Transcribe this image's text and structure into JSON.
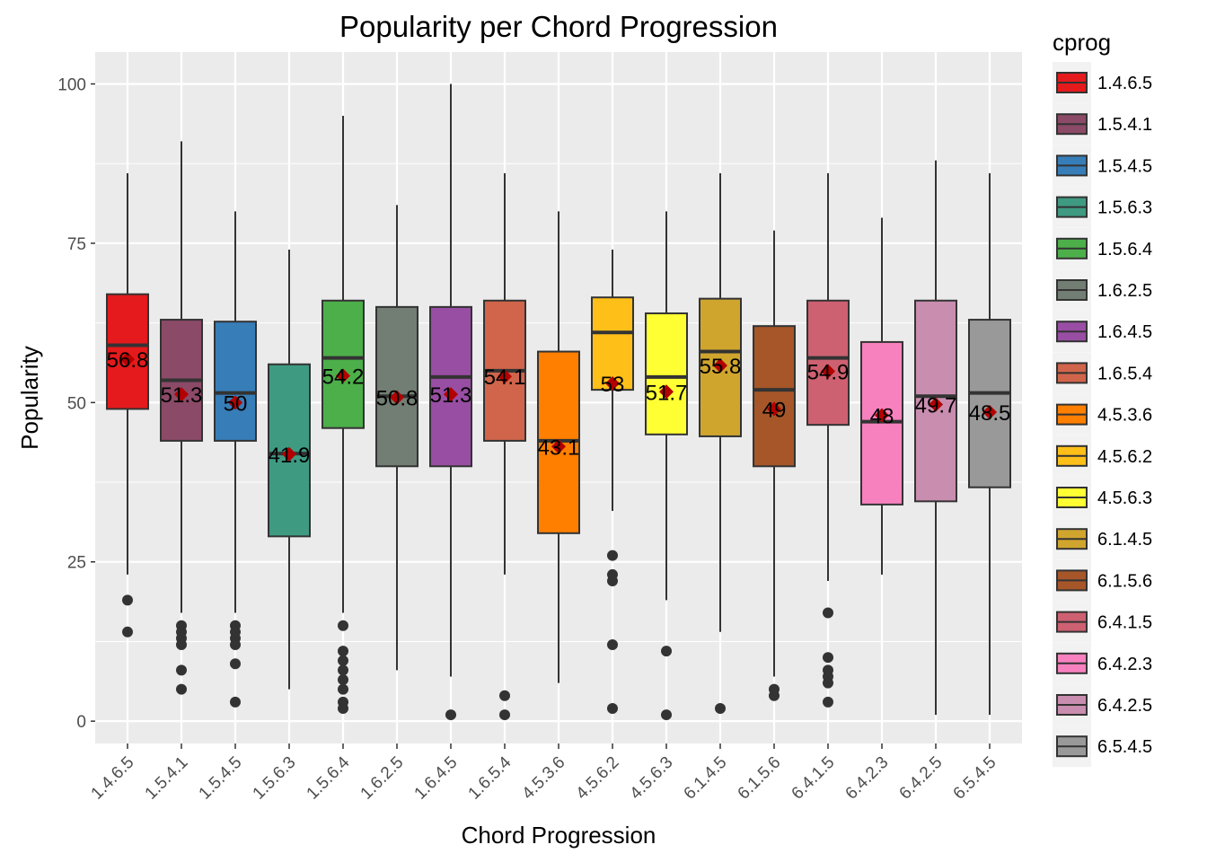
{
  "chart_data": {
    "type": "boxplot",
    "title": "Popularity per Chord Progression",
    "xlabel": "Chord Progression",
    "ylabel": "Popularity",
    "ylim": [
      -3.5,
      105
    ],
    "yticks": [
      0,
      25,
      50,
      75,
      100
    ],
    "grid": true,
    "legend": {
      "title": "cprog",
      "placement": "right"
    },
    "series": [
      {
        "name": "1.4.6.5",
        "color": "#e41a1c",
        "lower_whisker": 23,
        "q1": 49,
        "median": 59,
        "q3": 67,
        "upper_whisker": 86,
        "mean": 56.8,
        "mean_label": "56.8",
        "outliers": [
          19,
          14
        ]
      },
      {
        "name": "1.5.4.1",
        "color": "#8b4a67",
        "lower_whisker": 17,
        "q1": 44,
        "median": 53.5,
        "q3": 63,
        "upper_whisker": 91,
        "mean": 51.3,
        "mean_label": "51.3",
        "outliers": [
          15,
          14,
          13,
          12,
          8,
          5
        ]
      },
      {
        "name": "1.5.4.5",
        "color": "#377eb8",
        "lower_whisker": 17,
        "q1": 44,
        "median": 51.5,
        "q3": 62.7,
        "upper_whisker": 80,
        "mean": 50,
        "mean_label": "50",
        "outliers": [
          15,
          14,
          13,
          12,
          9,
          3
        ]
      },
      {
        "name": "1.5.6.3",
        "color": "#3f9a82",
        "lower_whisker": 5,
        "q1": 29,
        "median": 42,
        "q3": 56,
        "upper_whisker": 74,
        "mean": 41.9,
        "mean_label": "41.9",
        "outliers": []
      },
      {
        "name": "1.5.6.4",
        "color": "#4daf4a",
        "lower_whisker": 17,
        "q1": 46,
        "median": 57,
        "q3": 66,
        "upper_whisker": 95,
        "mean": 54.2,
        "mean_label": "54.2",
        "outliers": [
          15,
          11,
          9.5,
          8,
          6.5,
          5,
          3,
          2
        ]
      },
      {
        "name": "1.6.2.5",
        "color": "#727e73",
        "lower_whisker": 8,
        "q1": 40,
        "median": 51,
        "q3": 65,
        "upper_whisker": 81,
        "mean": 50.8,
        "mean_label": "50.8",
        "outliers": []
      },
      {
        "name": "1.6.4.5",
        "color": "#984ea3",
        "lower_whisker": 7,
        "q1": 40,
        "median": 54,
        "q3": 65,
        "upper_whisker": 100,
        "mean": 51.3,
        "mean_label": "51.3",
        "outliers": [
          1
        ]
      },
      {
        "name": "1.6.5.4",
        "color": "#d0654b",
        "lower_whisker": 23,
        "q1": 44,
        "median": 55,
        "q3": 66,
        "upper_whisker": 86,
        "mean": 54.1,
        "mean_label": "54.1",
        "outliers": [
          4,
          1
        ]
      },
      {
        "name": "4.5.3.6",
        "color": "#ff7f00",
        "lower_whisker": 6,
        "q1": 29.5,
        "median": 44,
        "q3": 58,
        "upper_whisker": 80,
        "mean": 43.1,
        "mean_label": "43.1",
        "outliers": []
      },
      {
        "name": "4.5.6.2",
        "color": "#ffbf19",
        "lower_whisker": 33,
        "q1": 52,
        "median": 61,
        "q3": 66.5,
        "upper_whisker": 74,
        "mean": 53,
        "mean_label": "53",
        "outliers": [
          26,
          23,
          22,
          12,
          2
        ]
      },
      {
        "name": "4.5.6.3",
        "color": "#ffff33",
        "lower_whisker": 19,
        "q1": 45,
        "median": 54,
        "q3": 64,
        "upper_whisker": 80,
        "mean": 51.7,
        "mean_label": "51.7",
        "outliers": [
          11,
          1
        ]
      },
      {
        "name": "6.1.4.5",
        "color": "#d0a52e",
        "lower_whisker": 14,
        "q1": 44.7,
        "median": 58,
        "q3": 66.3,
        "upper_whisker": 86,
        "mean": 55.8,
        "mean_label": "55.8",
        "outliers": [
          2
        ]
      },
      {
        "name": "6.1.5.6",
        "color": "#a65628",
        "lower_whisker": 7,
        "q1": 40,
        "median": 52,
        "q3": 62,
        "upper_whisker": 77,
        "mean": 49,
        "mean_label": "49",
        "outliers": [
          5,
          4
        ]
      },
      {
        "name": "6.4.1.5",
        "color": "#ce6171",
        "lower_whisker": 22,
        "q1": 46.5,
        "median": 57,
        "q3": 66,
        "upper_whisker": 86,
        "mean": 54.9,
        "mean_label": "54.9",
        "outliers": [
          17,
          10,
          8,
          7,
          6,
          3
        ]
      },
      {
        "name": "6.4.2.3",
        "color": "#f781bf",
        "lower_whisker": 23,
        "q1": 34,
        "median": 47,
        "q3": 59.5,
        "upper_whisker": 79,
        "mean": 48,
        "mean_label": "48",
        "outliers": []
      },
      {
        "name": "6.4.2.5",
        "color": "#c98daf",
        "lower_whisker": 1,
        "q1": 34.5,
        "median": 51,
        "q3": 66,
        "upper_whisker": 88,
        "mean": 49.7,
        "mean_label": "49.7",
        "outliers": []
      },
      {
        "name": "6.5.4.5",
        "color": "#999999",
        "lower_whisker": 1,
        "q1": 36.7,
        "median": 51.5,
        "q3": 63,
        "upper_whisker": 86,
        "mean": 48.5,
        "mean_label": "48.5",
        "outliers": []
      }
    ]
  }
}
